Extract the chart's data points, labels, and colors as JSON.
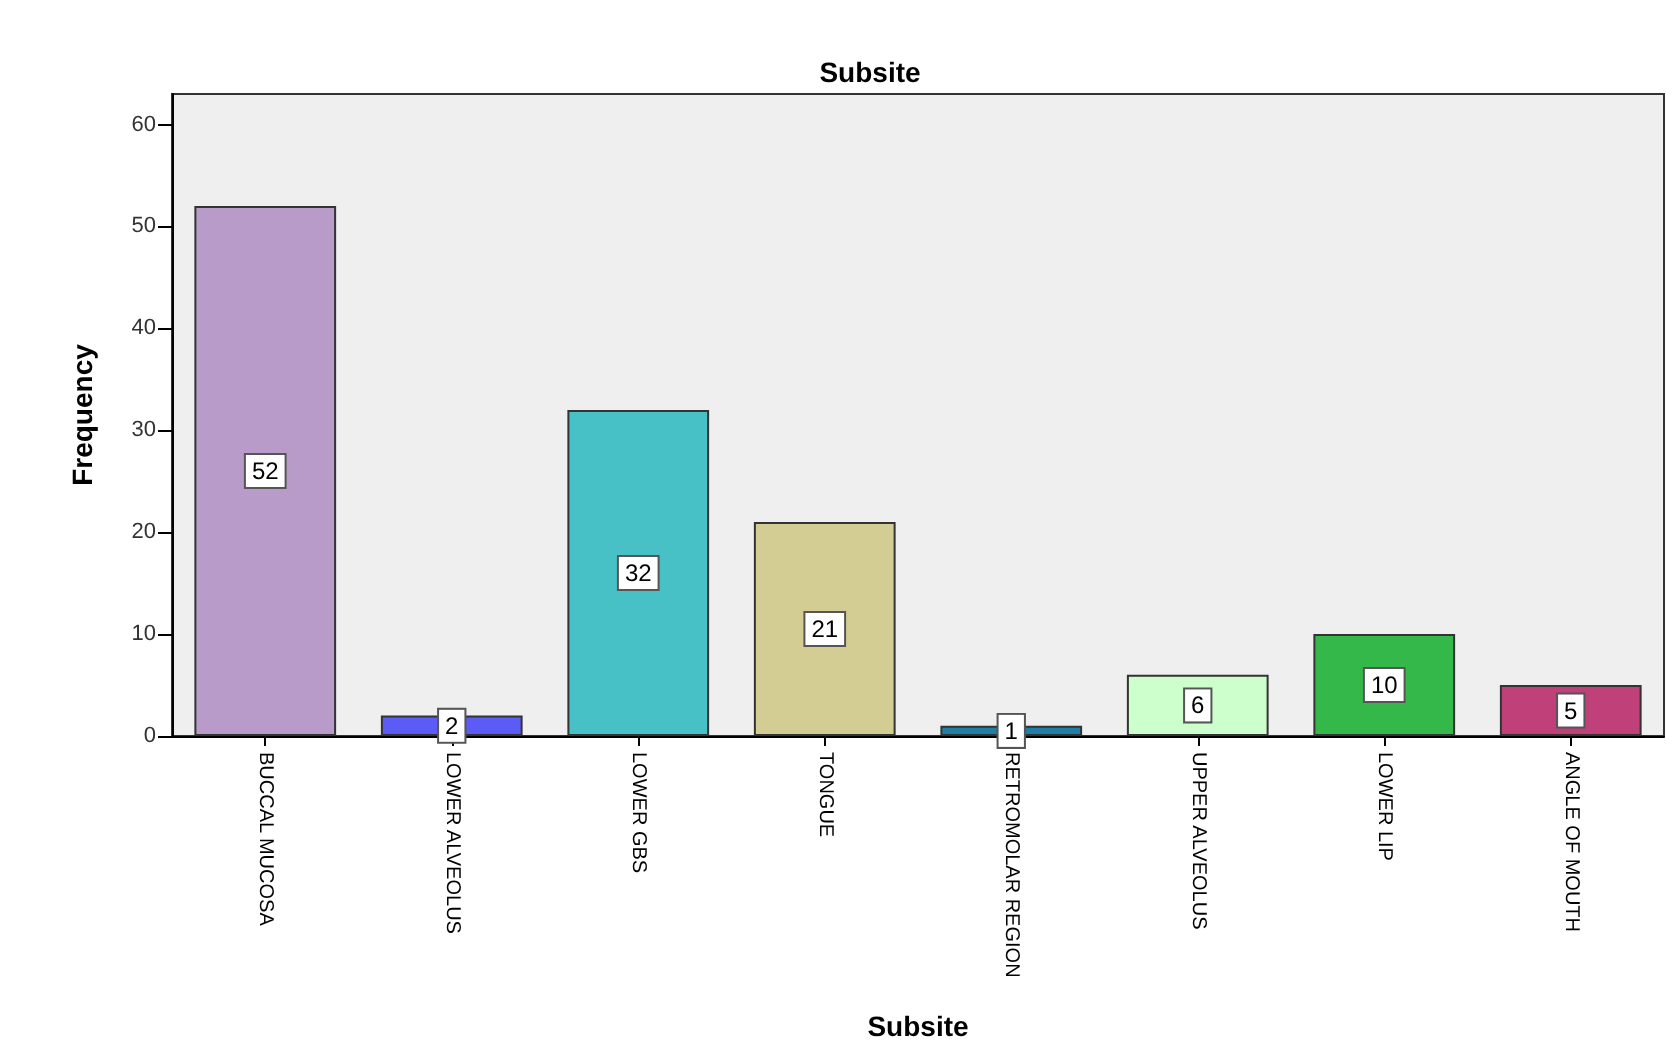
{
  "chart_data": {
    "type": "bar",
    "title": "Subsite",
    "xlabel": "Subsite",
    "ylabel": "Frequency",
    "categories": [
      "BUCCAL MUCOSA",
      "LOWER ALVEOLUS",
      "LOWER GBS",
      "TONGUE",
      "RETROMOLAR REGION",
      "UPPER ALVEOLUS",
      "LOWER LIP",
      "ANGLE OF MOUTH"
    ],
    "values": [
      52,
      2,
      32,
      21,
      1,
      6,
      10,
      5
    ],
    "colors": [
      "#b89bc9",
      "#5b5bf5",
      "#48c1c6",
      "#d3cd93",
      "#1f7fa6",
      "#ccffcc",
      "#35b84a",
      "#c0407a"
    ],
    "ylim": [
      0,
      63
    ],
    "yticks": [
      0,
      10,
      20,
      30,
      40,
      50,
      60
    ],
    "grid": false,
    "data_labels": true
  }
}
